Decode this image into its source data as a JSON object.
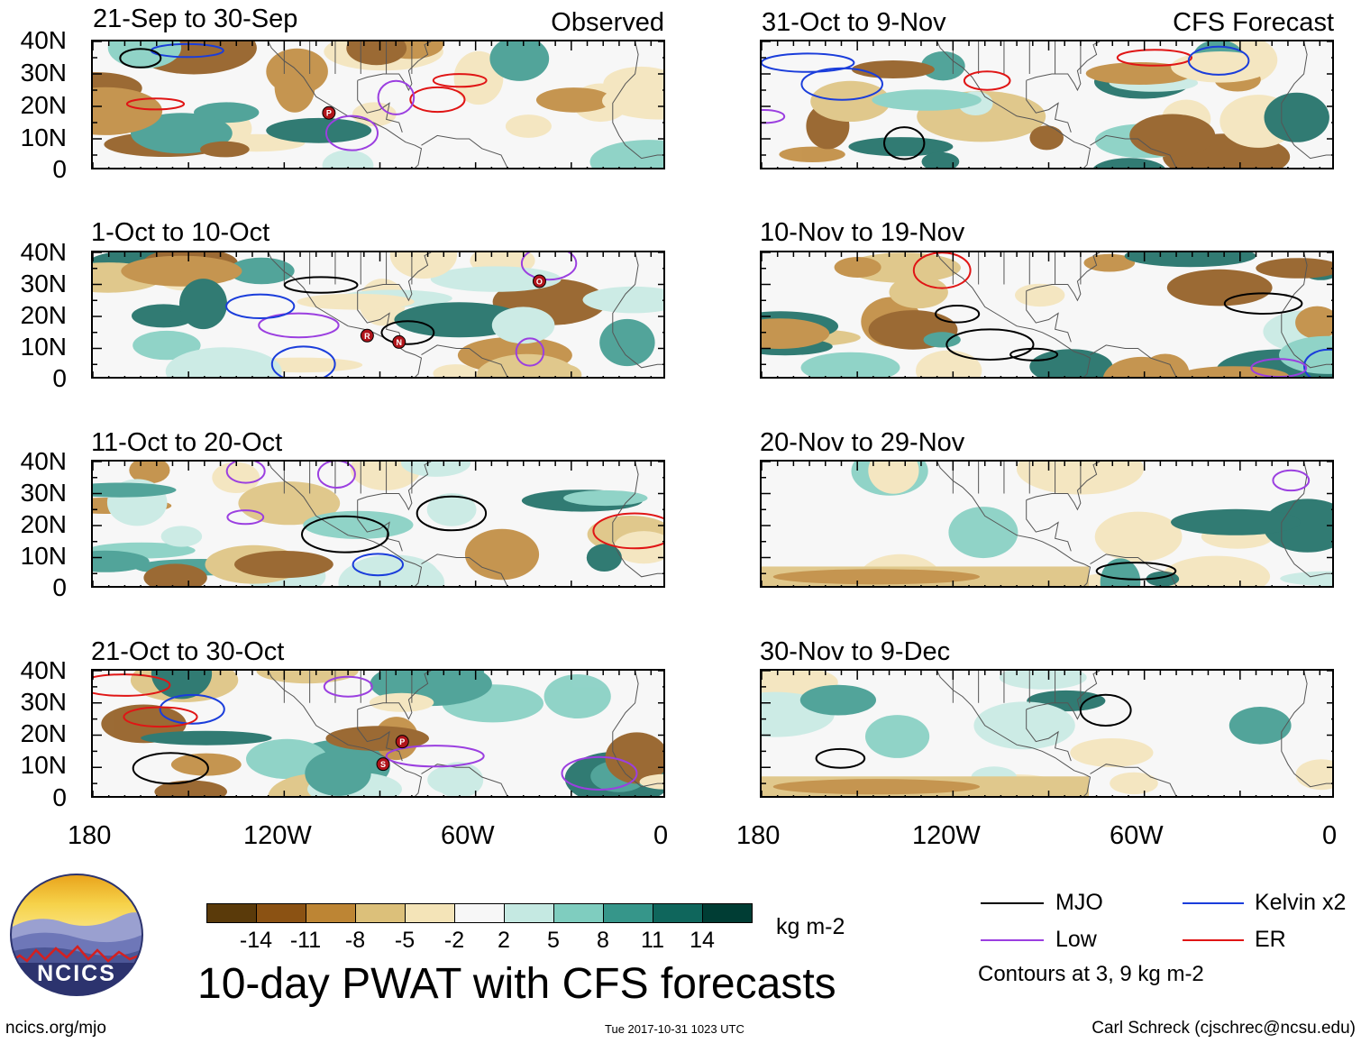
{
  "panels": [
    {
      "title": "21-Sep to 30-Sep",
      "tag": "Observed"
    },
    {
      "title": "1-Oct to 10-Oct",
      "tag": ""
    },
    {
      "title": "11-Oct to 20-Oct",
      "tag": ""
    },
    {
      "title": "21-Oct to 30-Oct",
      "tag": ""
    },
    {
      "title": "31-Oct to 9-Nov",
      "tag": "CFS Forecast"
    },
    {
      "title": "10-Nov to 19-Nov",
      "tag": ""
    },
    {
      "title": "20-Nov to 29-Nov",
      "tag": ""
    },
    {
      "title": "30-Nov to 9-Dec",
      "tag": ""
    }
  ],
  "lat_labels": [
    "40N",
    "30N",
    "20N",
    "10N",
    "0"
  ],
  "lon_labels": [
    "180",
    "120W",
    "60W",
    "0"
  ],
  "storm_markers": [
    {
      "panel": 0,
      "letter": "P",
      "lon": -106,
      "lat": 18
    },
    {
      "panel": 1,
      "letter": "O",
      "lon": -40,
      "lat": 31
    },
    {
      "panel": 1,
      "letter": "R",
      "lon": -94,
      "lat": 14
    },
    {
      "panel": 1,
      "letter": "N",
      "lon": -84,
      "lat": 12
    },
    {
      "panel": 3,
      "letter": "P",
      "lon": -83,
      "lat": 18
    },
    {
      "panel": 3,
      "letter": "S",
      "lon": -89,
      "lat": 11
    }
  ],
  "colorbar": {
    "colors": [
      "#5a3a0a",
      "#8b5213",
      "#bd8534",
      "#dcc07a",
      "#f4e4b8",
      "#f7f7f7",
      "#c5e9e2",
      "#7fcdbf",
      "#36968a",
      "#0f665c",
      "#003d34"
    ],
    "tick_labels": [
      "-14",
      "-11",
      "-8",
      "-5",
      "-2",
      "2",
      "5",
      "8",
      "11",
      "14"
    ],
    "units": "kg m-2"
  },
  "legend": {
    "items": [
      {
        "label": "MJO",
        "color": "#000000"
      },
      {
        "label": "Kelvin x2",
        "color": "#1a3ddb"
      },
      {
        "label": "Low",
        "color": "#9b3fe0"
      },
      {
        "label": "ER",
        "color": "#e01515"
      }
    ],
    "note": "Contours at 3, 9 kg m-2"
  },
  "logo_text": "NCICS",
  "main_title": "10-day PWAT with CFS forecasts",
  "footer": {
    "left": "ncics.org/mjo",
    "center": "Tue 2017-10-31 1023 UTC",
    "right": "Carl Schreck (cjschrec@ncsu.edu)"
  }
}
